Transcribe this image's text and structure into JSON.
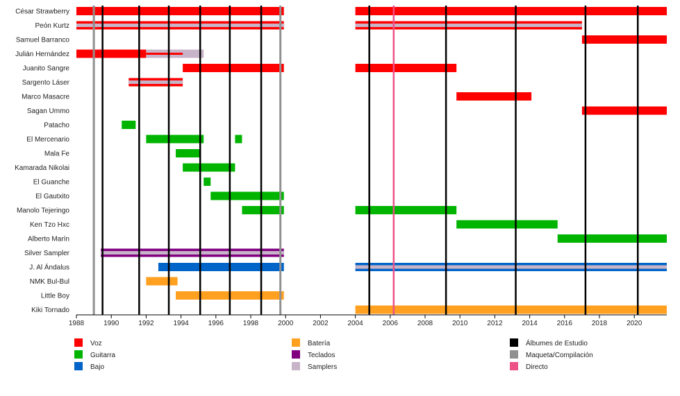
{
  "chart_data": {
    "type": "timeline",
    "x_range": [
      1988,
      2022
    ],
    "x_ticks": [
      1988,
      1990,
      1992,
      1994,
      1996,
      1998,
      2000,
      2002,
      2004,
      2006,
      2008,
      2010,
      2012,
      2014,
      2016,
      2018,
      2020
    ],
    "colors": {
      "voz": "#ff0000",
      "guitarra": "#00b400",
      "bajo": "#0064c8",
      "bateria": "#ffa020",
      "teclados": "#800080",
      "samplers": "#c8b4c8",
      "estudio": "#000000",
      "maqueta": "#909090",
      "directo": "#ee5088"
    },
    "members": [
      {
        "name": "César Strawberry",
        "periods": [
          {
            "role": "voz",
            "start": 1988,
            "end": 1999.9
          },
          {
            "role": "voz",
            "start": 2004,
            "end": 2022
          }
        ]
      },
      {
        "name": "Peón Kurtz",
        "periods": [
          {
            "role": "voz",
            "start": 1988,
            "end": 1999.9
          },
          {
            "role": "voz",
            "start": 2004,
            "end": 2017
          }
        ],
        "second_role": "samplers"
      },
      {
        "name": "Samuel Barranco",
        "periods": [
          {
            "role": "voz",
            "start": 2017,
            "end": 2022
          }
        ]
      },
      {
        "name": "Julián Hernández",
        "periods": [
          {
            "role": "voz",
            "start": 1988,
            "end": 1992
          },
          {
            "role": "samplers",
            "start": 1992,
            "end": 1995.3
          }
        ],
        "inner_voz": [
          1992,
          1994.1
        ]
      },
      {
        "name": "Juanito Sangre",
        "periods": [
          {
            "role": "voz",
            "start": 1994.1,
            "end": 1999.9
          },
          {
            "role": "voz",
            "start": 2004,
            "end": 2009.8
          }
        ]
      },
      {
        "name": "Sargento Láser",
        "periods": [
          {
            "role": "voz",
            "start": 1991,
            "end": 1994.1
          }
        ],
        "second_role": "samplers"
      },
      {
        "name": "Marco Masacre",
        "periods": [
          {
            "role": "voz",
            "start": 2009.8,
            "end": 2014.1
          }
        ]
      },
      {
        "name": "Sagan Ummo",
        "periods": [
          {
            "role": "voz",
            "start": 2017,
            "end": 2022
          }
        ]
      },
      {
        "name": "Patacho",
        "periods": [
          {
            "role": "guitarra",
            "start": 1990.6,
            "end": 1991.4
          }
        ]
      },
      {
        "name": "El Mercenario",
        "periods": [
          {
            "role": "guitarra",
            "start": 1992,
            "end": 1995.3
          },
          {
            "role": "guitarra",
            "start": 1997.1,
            "end": 1997.5
          }
        ]
      },
      {
        "name": "Mala Fe",
        "periods": [
          {
            "role": "guitarra",
            "start": 1993.7,
            "end": 1995.1
          }
        ]
      },
      {
        "name": "Kamarada Nikolai",
        "periods": [
          {
            "role": "guitarra",
            "start": 1994.1,
            "end": 1997.1
          }
        ]
      },
      {
        "name": "El Guanche",
        "periods": [
          {
            "role": "guitarra",
            "start": 1995.3,
            "end": 1995.7
          }
        ]
      },
      {
        "name": "El Gautxito",
        "periods": [
          {
            "role": "guitarra",
            "start": 1995.7,
            "end": 1999.9
          }
        ]
      },
      {
        "name": "Manolo Tejeringo",
        "periods": [
          {
            "role": "guitarra",
            "start": 1997.5,
            "end": 1999.9
          },
          {
            "role": "guitarra",
            "start": 2004,
            "end": 2009.8
          }
        ]
      },
      {
        "name": "Ken Tzo Hxc",
        "periods": [
          {
            "role": "guitarra",
            "start": 2009.8,
            "end": 2015.6
          }
        ]
      },
      {
        "name": "Alberto Marín",
        "periods": [
          {
            "role": "guitarra",
            "start": 2015.6,
            "end": 2022
          }
        ]
      },
      {
        "name": "Silver Sampler",
        "periods": [
          {
            "role": "teclados",
            "start": 1989.4,
            "end": 1999.9
          }
        ],
        "second_role": "samplers"
      },
      {
        "name": "J. Al Ándalus",
        "periods": [
          {
            "role": "bajo",
            "start": 1992.7,
            "end": 1999.9
          },
          {
            "role": "bajo",
            "start": 2004,
            "end": 2022
          }
        ],
        "second_role": "samplers",
        "second_role_from": 2004
      },
      {
        "name": "NMK Bul-Bul",
        "periods": [
          {
            "role": "bateria",
            "start": 1992,
            "end": 1993.8
          }
        ]
      },
      {
        "name": "Little Boy",
        "periods": [
          {
            "role": "bateria",
            "start": 1993.7,
            "end": 1999.9
          }
        ]
      },
      {
        "name": "Kiki Tornado",
        "periods": [
          {
            "role": "bateria",
            "start": 2004,
            "end": 2022
          }
        ]
      }
    ],
    "events": {
      "estudio": [
        1989.5,
        1991.6,
        1993.3,
        1995.1,
        1996.8,
        1998.6,
        2004.8,
        2009.2,
        2013.2,
        2017.2,
        2020.2
      ],
      "maqueta": [
        1989,
        1999.7
      ],
      "directo": [
        2006.2
      ]
    },
    "legend": [
      {
        "key": "voz",
        "label": "Voz"
      },
      {
        "key": "guitarra",
        "label": "Guitarra"
      },
      {
        "key": "bajo",
        "label": "Bajo"
      },
      {
        "key": "bateria",
        "label": "Batería"
      },
      {
        "key": "teclados",
        "label": "Teclados"
      },
      {
        "key": "samplers",
        "label": "Samplers"
      },
      {
        "key": "estudio",
        "label": "Álbumes de Estudio"
      },
      {
        "key": "maqueta",
        "label": "Maqueta/Compilación"
      },
      {
        "key": "directo",
        "label": "Directo"
      }
    ]
  }
}
